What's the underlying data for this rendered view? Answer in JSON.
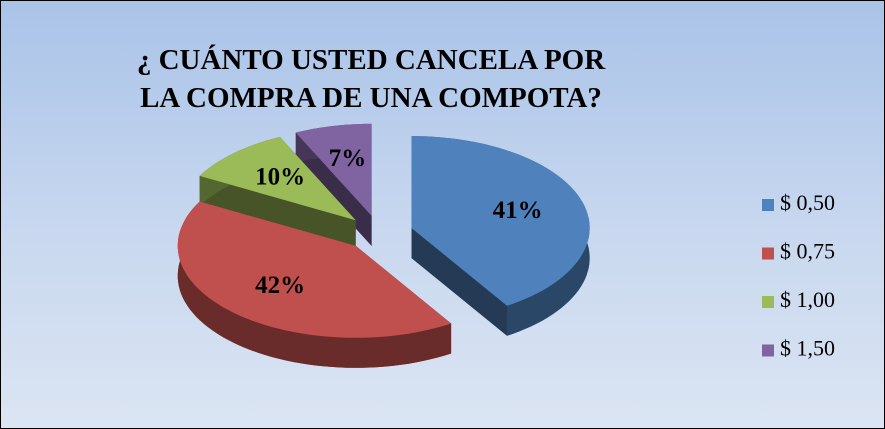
{
  "chart_data": {
    "type": "pie",
    "title": "¿ CUÁNTO USTED CANCELA POR LA COMPRA DE UNA COMPOTA?",
    "categories": [
      "$ 0,50",
      "$ 0,75",
      "$ 1,00",
      "$ 1,50"
    ],
    "values": [
      41,
      42,
      10,
      7
    ],
    "value_labels": [
      "41%",
      "42%",
      "10%",
      "7%"
    ],
    "colors": [
      "#4f81bd",
      "#c0504d",
      "#9bbb59",
      "#8064a2"
    ],
    "legend": "right"
  }
}
